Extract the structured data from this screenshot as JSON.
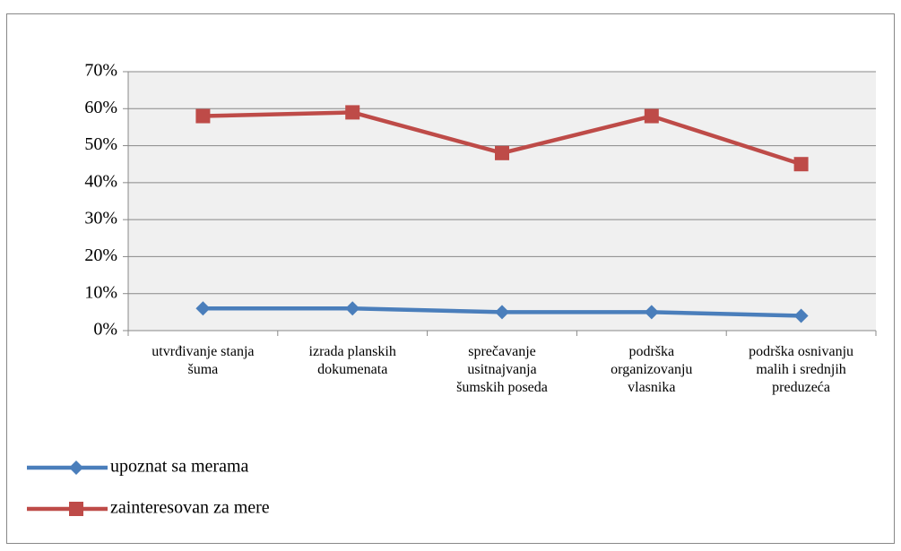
{
  "chart_data": {
    "type": "line",
    "categories": [
      "utvrđivanje stanja šuma",
      "izrada planskih dokumenata",
      "sprečavanje usitnajvanja šumskih poseda",
      "podrška organizovanju vlasnika",
      "podrška osnivanju malih i srednjih preduzeća"
    ],
    "series": [
      {
        "name": "upoznat sa merama",
        "color": "#4a7ebb",
        "marker": "diamond",
        "values": [
          6,
          6,
          5,
          5,
          4
        ]
      },
      {
        "name": "zainteresovan za mere",
        "color": "#be4b48",
        "marker": "square",
        "values": [
          58,
          59,
          48,
          58,
          45
        ]
      }
    ],
    "ylim": [
      0,
      70
    ],
    "yticks": [
      {
        "value": 0,
        "label": "0%"
      },
      {
        "value": 10,
        "label": "10%"
      },
      {
        "value": 20,
        "label": "20%"
      },
      {
        "value": 30,
        "label": "30%"
      },
      {
        "value": 40,
        "label": "40%"
      },
      {
        "value": 50,
        "label": "50%"
      },
      {
        "value": 60,
        "label": "60%"
      },
      {
        "value": 70,
        "label": "70%"
      }
    ],
    "grid": true,
    "legend": "bottom-left"
  }
}
